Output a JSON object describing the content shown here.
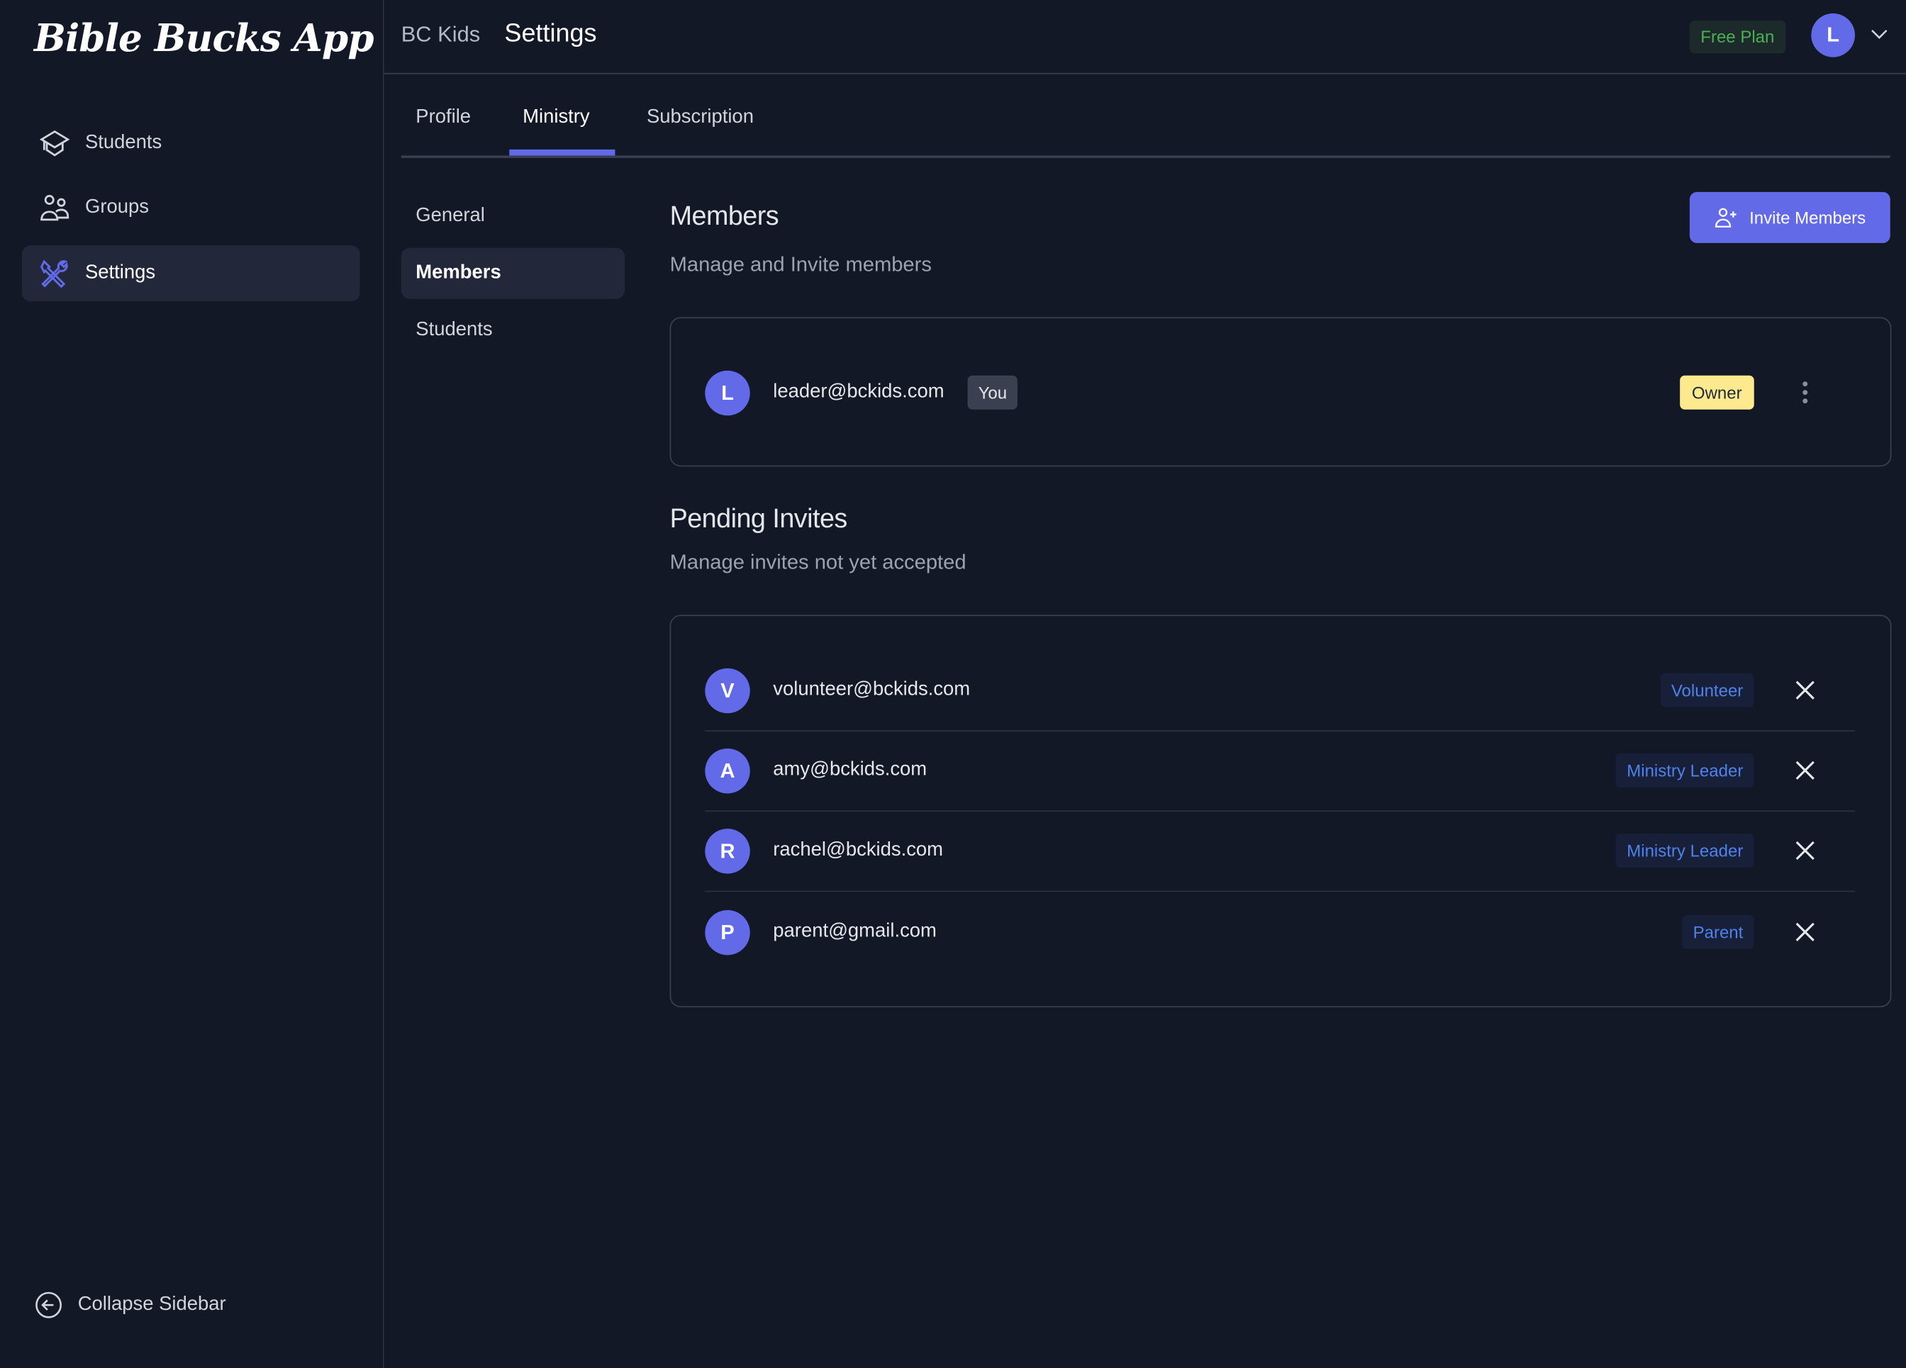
{
  "app": {
    "logo": "Bible Bucks App"
  },
  "sidebar": {
    "items": [
      {
        "label": "Students",
        "icon": "graduation-cap-icon"
      },
      {
        "label": "Groups",
        "icon": "users-icon"
      },
      {
        "label": "Settings",
        "icon": "tools-icon",
        "active": true
      }
    ],
    "collapse_label": "Collapse Sidebar"
  },
  "header": {
    "breadcrumb": "BC Kids",
    "title": "Settings",
    "plan": "Free Plan",
    "user_initial": "L"
  },
  "tabs": [
    {
      "label": "Profile"
    },
    {
      "label": "Ministry",
      "active": true
    },
    {
      "label": "Subscription"
    }
  ],
  "subnav": [
    {
      "label": "General"
    },
    {
      "label": "Members",
      "active": true
    },
    {
      "label": "Students"
    }
  ],
  "members": {
    "title": "Members",
    "description": "Manage and Invite members",
    "invite_label": "Invite Members",
    "list": [
      {
        "initial": "L",
        "email": "leader@bckids.com",
        "you_badge": "You",
        "role": "Owner"
      }
    ]
  },
  "pending": {
    "title": "Pending Invites",
    "description": "Manage invites not yet accepted",
    "list": [
      {
        "initial": "V",
        "email": "volunteer@bckids.com",
        "role": "Volunteer"
      },
      {
        "initial": "A",
        "email": "amy@bckids.com",
        "role": "Ministry Leader"
      },
      {
        "initial": "R",
        "email": "rachel@bckids.com",
        "role": "Ministry Leader"
      },
      {
        "initial": "P",
        "email": "parent@gmail.com",
        "role": "Parent"
      }
    ]
  },
  "colors": {
    "accent": "#636ae8",
    "background": "#131826",
    "owner_badge": "#fdea8e",
    "role_badge_text": "#4f82ea",
    "plan_text": "#4caf50"
  }
}
